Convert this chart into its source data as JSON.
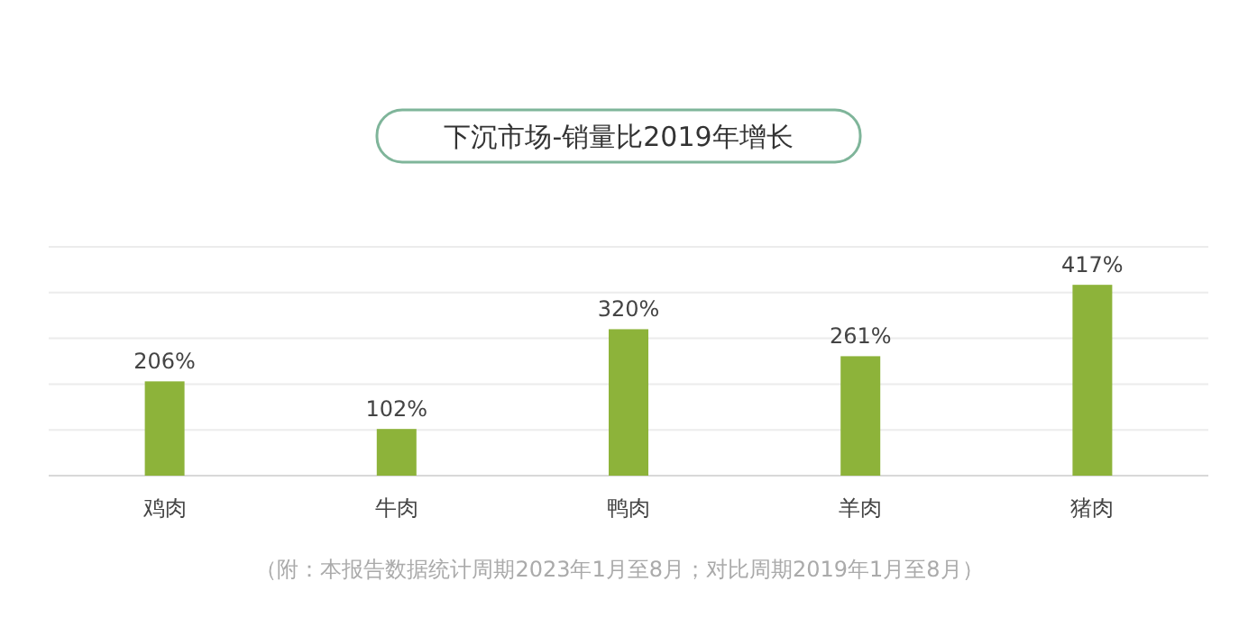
{
  "chart_data": {
    "type": "bar",
    "title": "下沉市场-销量比2019年增长",
    "categories": [
      "鸡肉",
      "牛肉",
      "鸭肉",
      "羊肉",
      "猪肉"
    ],
    "values": [
      206,
      102,
      320,
      261,
      417
    ],
    "value_labels": [
      "206%",
      "102%",
      "320%",
      "261%",
      "417%"
    ],
    "color": "#8db33a",
    "ylim": [
      0,
      500
    ],
    "yticks": [
      {
        "value": 0,
        "label": null
      },
      {
        "value": 100,
        "label": null
      },
      {
        "value": 200,
        "label": null
      },
      {
        "value": 300,
        "label": null
      },
      {
        "value": 400,
        "label": null
      },
      {
        "value": 500,
        "label": null
      }
    ],
    "tick_labels": "x",
    "grid": "y",
    "annotations": [
      "（附：本报告数据统计周期2023年1月至8月；对比周期2019年1月至8月）"
    ]
  }
}
